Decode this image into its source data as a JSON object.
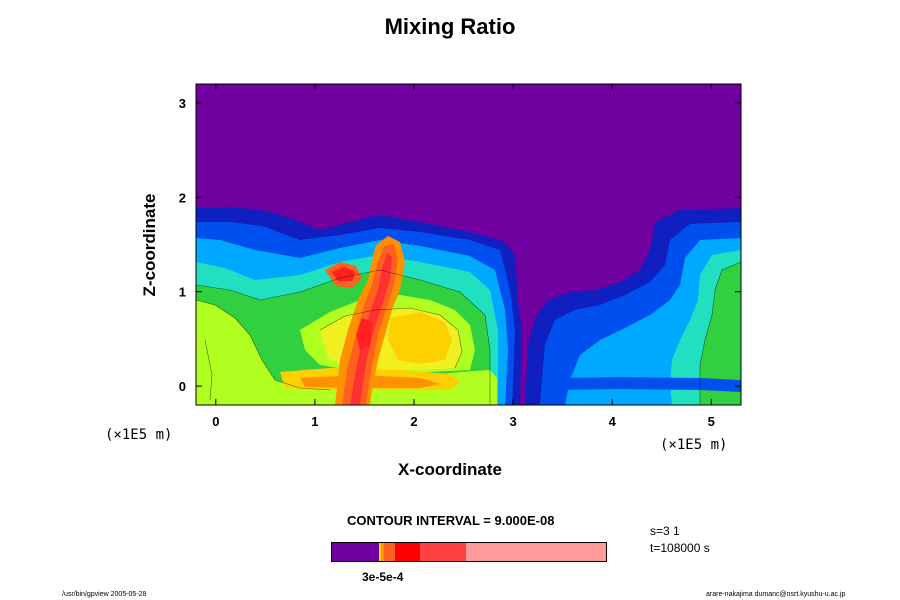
{
  "chart_data": {
    "type": "heatmap",
    "title": "Mixing Ratio",
    "xlabel": "X-coordinate",
    "ylabel": "Z-coordinate",
    "x_unit": "(×1E5 m)",
    "xlim": [
      -0.2,
      5.3
    ],
    "ylim": [
      -0.2,
      3.2
    ],
    "x_ticks": [
      0,
      1,
      2,
      3,
      4,
      5
    ],
    "y_ticks": [
      0,
      1,
      2,
      3
    ],
    "contour_interval_text": "CONTOUR INTERVAL = 9.000E-08",
    "colorbar": {
      "colors": [
        "#7000a0",
        "#ffd000",
        "#ff9000",
        "#ff6020",
        "#ff0000",
        "#ff4040",
        "#ff9a9a"
      ],
      "fractions": [
        0.17,
        0.01,
        0.01,
        0.04,
        0.09,
        0.17,
        0.51
      ],
      "tick_label": "3e-5e-4"
    },
    "info": [
      "s=3 1",
      "t=108000 s"
    ],
    "grid": false
  },
  "footer": {
    "left": "/usr/bin/gpview 2005-05-28",
    "right": "arare-nakajima dumanc@nsrt.kyushu-u.ac.jp"
  }
}
